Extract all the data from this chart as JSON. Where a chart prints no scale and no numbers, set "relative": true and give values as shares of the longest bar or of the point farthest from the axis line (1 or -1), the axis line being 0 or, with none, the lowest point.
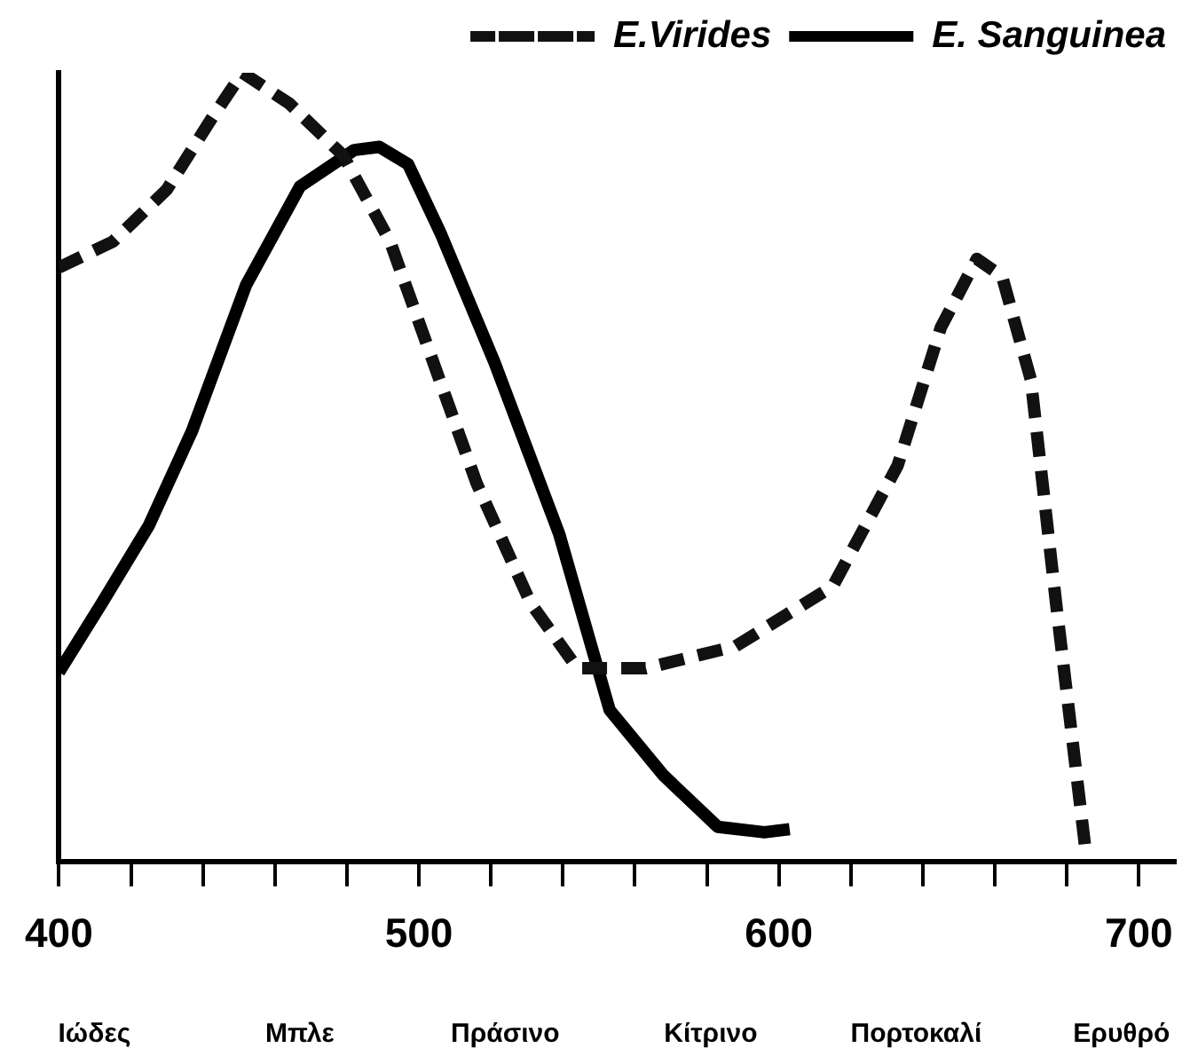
{
  "chart_data": {
    "type": "line",
    "relative": true,
    "x": [
      400,
      415,
      430,
      442,
      451,
      464,
      479,
      492,
      504,
      516,
      531,
      544,
      563,
      588,
      615,
      633,
      645,
      655,
      662,
      670,
      677,
      685
    ],
    "series": [
      {
        "name": "E.Virides",
        "color": "#111111",
        "line_style": "dashed",
        "values": [
          0.753,
          0.786,
          0.852,
          0.939,
          1.0,
          0.961,
          0.895,
          0.786,
          0.633,
          0.48,
          0.328,
          0.245,
          0.245,
          0.273,
          0.349,
          0.502,
          0.677,
          0.764,
          0.742,
          0.611,
          0.328,
          0.022
        ]
      },
      {
        "name": "E. Sanguinea",
        "color": "#000000",
        "line_style": "solid",
        "x": [
          400,
          412,
          425,
          437,
          452,
          467,
          482,
          489,
          497,
          506,
          521,
          539,
          553,
          568,
          583,
          596,
          603
        ],
        "values": [
          0.24,
          0.328,
          0.426,
          0.546,
          0.731,
          0.856,
          0.902,
          0.906,
          0.884,
          0.797,
          0.633,
          0.415,
          0.192,
          0.109,
          0.044,
          0.037,
          0.041
        ]
      }
    ],
    "xlim": [
      400,
      710
    ],
    "xticks": [
      400,
      {
        "value": 420,
        "label": null
      },
      {
        "value": 440,
        "label": null
      },
      {
        "value": 460,
        "label": null
      },
      {
        "value": 480,
        "label": null
      },
      500,
      {
        "value": 520,
        "label": null
      },
      {
        "value": 540,
        "label": null
      },
      {
        "value": 560,
        "label": null
      },
      {
        "value": 580,
        "label": null
      },
      600,
      {
        "value": 620,
        "label": null
      },
      {
        "value": 640,
        "label": null
      },
      {
        "value": 660,
        "label": null
      },
      {
        "value": 680,
        "label": null
      },
      700
    ],
    "annotations": [
      "Ιώδες",
      "Μπλε",
      "Πράσινο",
      "Κίτρινο",
      "Πορτοκαλί",
      "Ερυθρό"
    ],
    "legend": "top right",
    "grid": false,
    "marker": "none"
  }
}
